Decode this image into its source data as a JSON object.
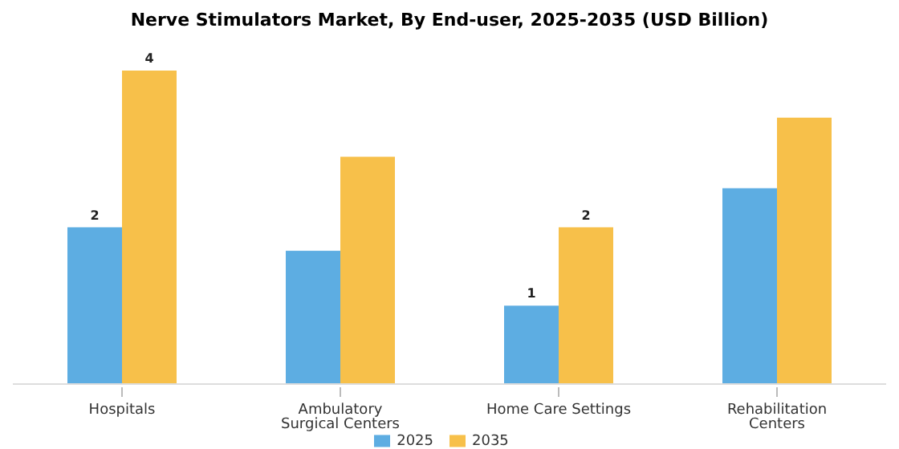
{
  "chart_data": {
    "type": "bar",
    "title": "Nerve Stimulators Market, By End-user, 2025-2035 (USD Billion)",
    "categories": [
      "Hospitals",
      "Ambulatory Surgical Centers",
      "Home Care Settings",
      "Rehabilitation Centers"
    ],
    "series": [
      {
        "name": "2025",
        "color": "#5dade2",
        "values": [
          2,
          1.7,
          1,
          2.5
        ],
        "value_labels": [
          "2",
          null,
          "1",
          null
        ]
      },
      {
        "name": "2035",
        "color": "#f7c04a",
        "values": [
          4,
          2.9,
          2,
          3.4
        ],
        "value_labels": [
          "4",
          null,
          "2",
          null
        ]
      }
    ],
    "legend": "bottom",
    "grid": false
  }
}
